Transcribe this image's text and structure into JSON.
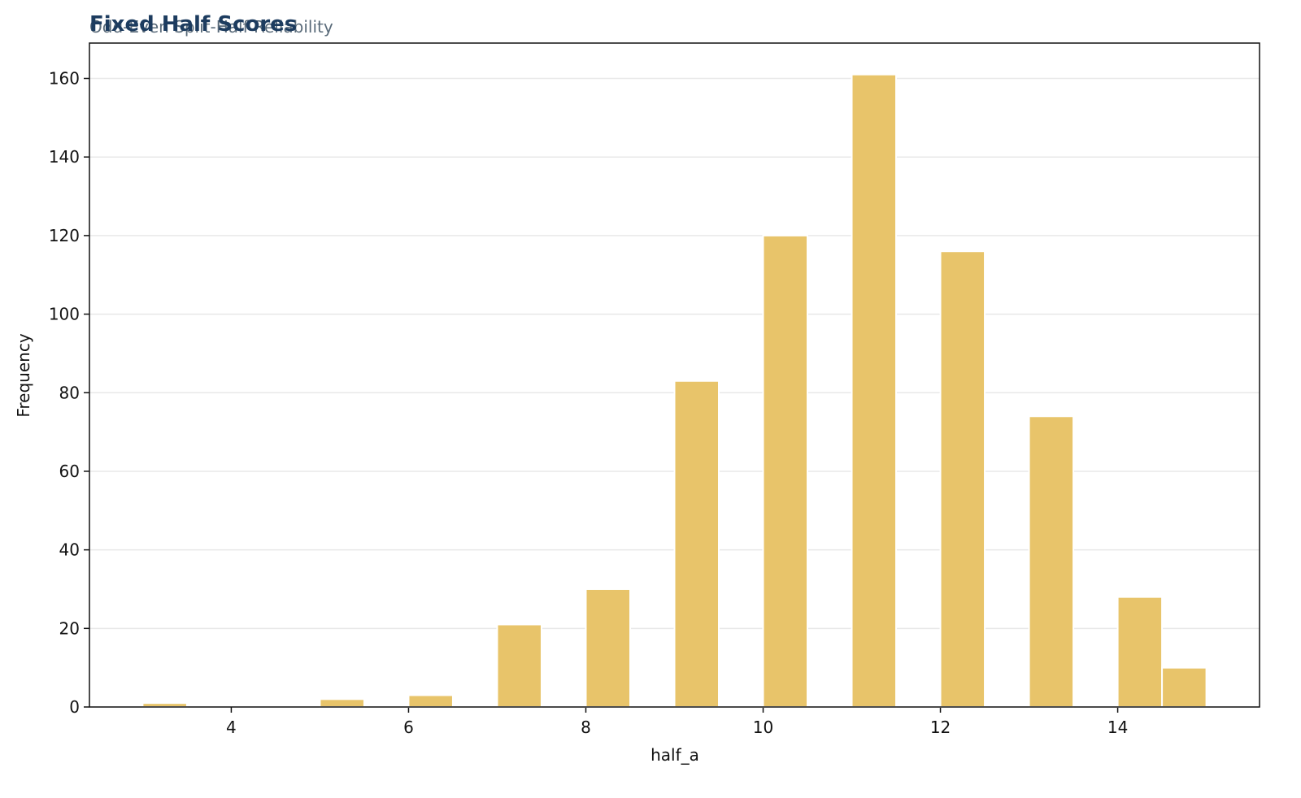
{
  "chart_data": {
    "type": "histogram",
    "title": "Fixed Half Scores",
    "subtitle": "Odd-Even Split-Half Reliability",
    "x_label": "half_a",
    "y_label": "Frequency",
    "bins": [
      3,
      3.5,
      4,
      4.5,
      5,
      5.5,
      6,
      6.5,
      7,
      7.5,
      8,
      8.5,
      9,
      9.5,
      10,
      10.5,
      11,
      11.5,
      12,
      12.5,
      13,
      13.5,
      14,
      14.5,
      15
    ],
    "values": [
      1,
      0,
      0,
      0,
      2,
      0,
      3,
      0,
      21,
      0,
      30,
      0,
      83,
      0,
      120,
      0,
      161,
      0,
      116,
      0,
      74,
      0,
      28,
      10
    ],
    "color": "#e8c46a",
    "xlim": [
      2.4,
      15.6
    ],
    "xticks": [
      4,
      6,
      8,
      10,
      12,
      14
    ],
    "ylim": [
      0,
      169
    ],
    "yticks": [
      0,
      20,
      40,
      60,
      80,
      100,
      120,
      140,
      160
    ],
    "grid": true
  }
}
